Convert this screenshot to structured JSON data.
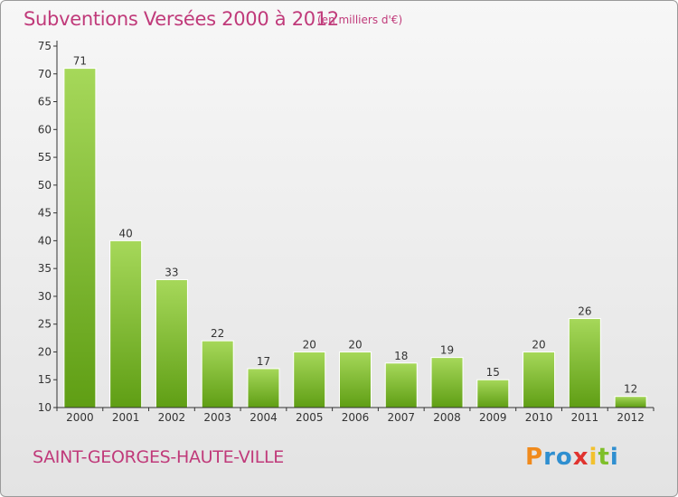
{
  "title": "Subventions Versées 2000 à 2012",
  "unit_note": "(en milliers d'€)",
  "commune": "SAINT-GEORGES-HAUTE-VILLE",
  "logo": {
    "letters": [
      "P",
      "r",
      "o",
      "x",
      "i",
      "t",
      "i"
    ],
    "colors": [
      "#f08a1c",
      "#2f8fd0",
      "#2f8fd0",
      "#e0332f",
      "#f2c12e",
      "#7fbf2a",
      "#2f8fd0"
    ]
  },
  "colors": {
    "bar_top": "#a6d85a",
    "bar_bottom": "#5f9e14",
    "axis": "#333333",
    "grid": "#cfcfcf",
    "text_accent": "#c03a7a"
  },
  "chart_data": {
    "type": "bar",
    "title": "Subventions Versées 2000 à 2012",
    "xlabel": "",
    "ylabel": "",
    "categories": [
      "2000",
      "2001",
      "2002",
      "2003",
      "2004",
      "2005",
      "2006",
      "2007",
      "2008",
      "2009",
      "2010",
      "2011",
      "2012"
    ],
    "values": [
      71,
      40,
      33,
      22,
      17,
      20,
      20,
      18,
      19,
      15,
      20,
      26,
      12
    ],
    "ylim": [
      10,
      75
    ],
    "yticks": [
      10,
      15,
      20,
      25,
      30,
      35,
      40,
      45,
      50,
      55,
      60,
      65,
      70,
      75
    ],
    "grid": false,
    "legend": "none"
  }
}
